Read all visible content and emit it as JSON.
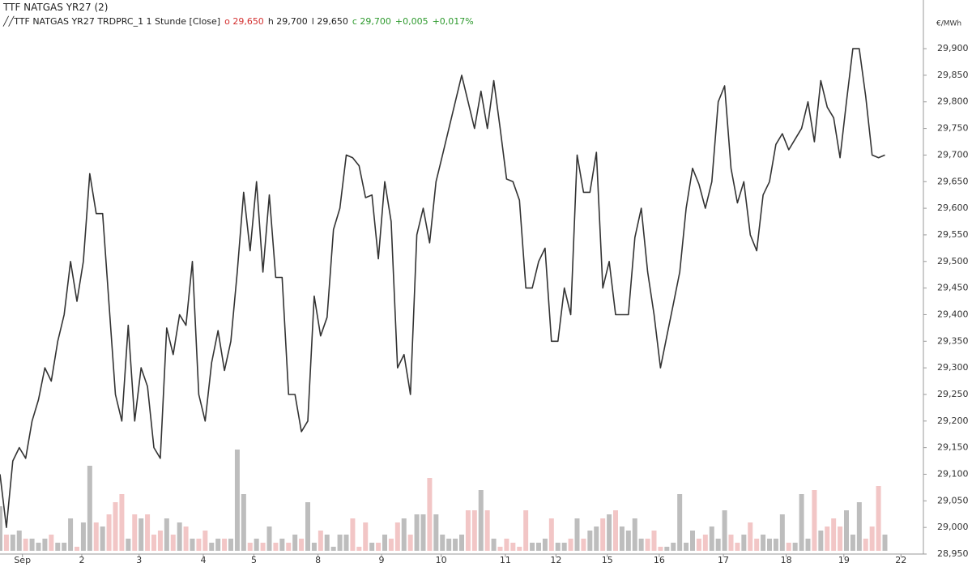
{
  "header": {
    "title": "TTF NATGAS YR27 (2)",
    "legend": {
      "name": "TTF NATGAS YR27 TRDPRC_1 1 Stunde [Close]",
      "open": "o 29,650",
      "high": "h 29,700",
      "low": "l 29,650",
      "close": "c 29,700",
      "change": "+0,005",
      "change_pct": "+0,017%"
    }
  },
  "chart_data": {
    "type": "line",
    "unit_label": "€/MWh",
    "color": "#333333",
    "values": [
      29.1,
      29.0,
      29.125,
      29.15,
      29.13,
      29.2,
      29.24,
      29.3,
      29.275,
      29.35,
      29.4,
      29.5,
      29.425,
      29.5,
      29.665,
      29.59,
      29.59,
      29.42,
      29.25,
      29.2,
      29.38,
      29.2,
      29.3,
      29.265,
      29.15,
      29.13,
      29.375,
      29.325,
      29.4,
      29.38,
      29.5,
      29.25,
      29.2,
      29.31,
      29.37,
      29.295,
      29.35,
      29.48,
      29.63,
      29.52,
      29.65,
      29.48,
      29.625,
      29.47,
      29.47,
      29.25,
      29.25,
      29.18,
      29.2,
      29.435,
      29.36,
      29.395,
      29.56,
      29.6,
      29.7,
      29.695,
      29.68,
      29.62,
      29.625,
      29.505,
      29.65,
      29.575,
      29.3,
      29.325,
      29.25,
      29.55,
      29.6,
      29.535,
      29.65,
      29.7,
      29.75,
      29.8,
      29.85,
      29.8,
      29.75,
      29.82,
      29.75,
      29.84,
      29.75,
      29.655,
      29.65,
      29.615,
      29.45,
      29.45,
      29.5,
      29.525,
      29.35,
      29.35,
      29.45,
      29.4,
      29.7,
      29.63,
      29.63,
      29.705,
      29.45,
      29.5,
      29.4,
      29.4,
      29.4,
      29.545,
      29.6,
      29.48,
      29.4,
      29.3,
      29.36,
      29.42,
      29.48,
      29.6,
      29.675,
      29.645,
      29.6,
      29.65,
      29.8,
      29.83,
      29.675,
      29.61,
      29.65,
      29.55,
      29.52,
      29.625,
      29.65,
      29.72,
      29.74,
      29.71,
      29.73,
      29.75,
      29.8,
      29.725,
      29.84,
      29.79,
      29.77,
      29.695,
      29.8,
      29.9,
      29.9,
      29.81,
      29.7,
      29.695,
      29.7
    ],
    "xlim": [
      0,
      144
    ],
    "xticks": [
      {
        "value": 3.5,
        "label": "Sep"
      },
      {
        "value": 12.75,
        "label": "2"
      },
      {
        "value": 21.7,
        "label": "3"
      },
      {
        "value": 31.7,
        "label": "4"
      },
      {
        "value": 39.6,
        "label": "5"
      },
      {
        "value": 49.6,
        "label": "8"
      },
      {
        "value": 59.5,
        "label": "9"
      },
      {
        "value": 68.8,
        "label": "10"
      },
      {
        "value": 78.8,
        "label": "11"
      },
      {
        "value": 86.7,
        "label": "12"
      },
      {
        "value": 94.7,
        "label": "15"
      },
      {
        "value": 102.8,
        "label": "16"
      },
      {
        "value": 112.8,
        "label": "17"
      },
      {
        "value": 122.6,
        "label": "18"
      },
      {
        "value": 131.6,
        "label": "19"
      },
      {
        "value": 140.5,
        "label": "22"
      }
    ],
    "ylim": [
      28.95,
      29.961
    ],
    "yticks": [
      {
        "value": 28.95,
        "label": "28,950"
      },
      {
        "value": 29.0,
        "label": "29,000"
      },
      {
        "value": 29.05,
        "label": "29,050"
      },
      {
        "value": 29.1,
        "label": "29,100"
      },
      {
        "value": 29.15,
        "label": "29,150"
      },
      {
        "value": 29.2,
        "label": "29,200"
      },
      {
        "value": 29.25,
        "label": "29,250"
      },
      {
        "value": 29.3,
        "label": "29,300"
      },
      {
        "value": 29.35,
        "label": "29,350"
      },
      {
        "value": 29.4,
        "label": "29,400"
      },
      {
        "value": 29.45,
        "label": "29,450"
      },
      {
        "value": 29.5,
        "label": "29,500"
      },
      {
        "value": 29.55,
        "label": "29,550"
      },
      {
        "value": 29.6,
        "label": "29,600"
      },
      {
        "value": 29.65,
        "label": "29,650"
      },
      {
        "value": 29.7,
        "label": "29,700"
      },
      {
        "value": 29.75,
        "label": "29,750"
      },
      {
        "value": 29.8,
        "label": "29,800"
      },
      {
        "value": 29.85,
        "label": "29,850"
      },
      {
        "value": 29.9,
        "label": "29,900"
      }
    ],
    "volume": {
      "up_color": "#bdbdbd",
      "down_color": "#f2c6c6",
      "y2lim": [
        0,
        140
      ],
      "values": [
        55,
        20,
        20,
        25,
        15,
        15,
        10,
        15,
        20,
        10,
        10,
        40,
        5,
        35,
        105,
        35,
        30,
        45,
        60,
        70,
        15,
        45,
        40,
        45,
        20,
        25,
        40,
        20,
        35,
        30,
        15,
        15,
        25,
        10,
        15,
        15,
        15,
        125,
        70,
        10,
        15,
        10,
        30,
        10,
        15,
        10,
        20,
        15,
        60,
        10,
        25,
        20,
        5,
        20,
        20,
        40,
        5,
        35,
        10,
        10,
        20,
        15,
        35,
        40,
        20,
        45,
        45,
        90,
        45,
        20,
        15,
        15,
        20,
        50,
        50,
        75,
        50,
        15,
        5,
        15,
        10,
        5,
        50,
        10,
        10,
        15,
        40,
        10,
        10,
        15,
        40,
        15,
        25,
        30,
        40,
        45,
        50,
        30,
        25,
        40,
        15,
        15,
        25,
        5,
        5,
        10,
        70,
        10,
        25,
        15,
        20,
        30,
        15,
        50,
        20,
        10,
        20,
        35,
        15,
        20,
        15,
        15,
        45,
        10,
        10,
        70,
        15,
        75,
        25,
        30,
        40,
        30,
        50,
        20,
        60,
        15,
        30,
        80,
        20
      ]
    }
  }
}
